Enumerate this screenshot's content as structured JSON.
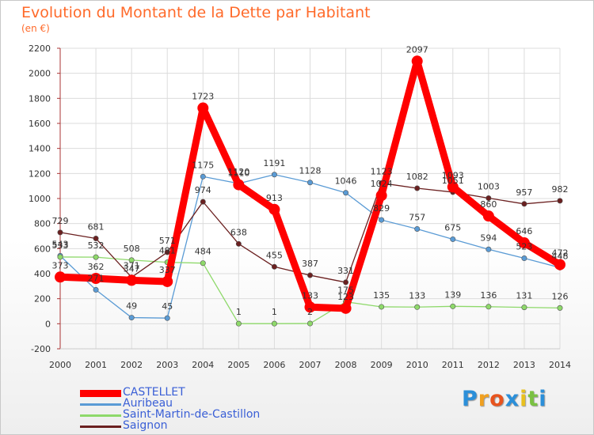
{
  "chart_data": {
    "type": "line",
    "title": "Evolution du Montant de la Dette par Habitant",
    "subtitle": "(en €)",
    "x": [
      "2000",
      "2001",
      "2002",
      "2003",
      "2004",
      "2005",
      "2006",
      "2007",
      "2008",
      "2009",
      "2010",
      "2011",
      "2012",
      "2013",
      "2014"
    ],
    "ylim": [
      -200,
      2200
    ],
    "yticks": [
      -200,
      0,
      200,
      400,
      600,
      800,
      1000,
      1200,
      1400,
      1600,
      1800,
      2000,
      2200
    ],
    "grid": true,
    "legend": "bottom-left",
    "series": [
      {
        "name": "CASTELLET",
        "color": "#ff0000",
        "values": [
          373,
          362,
          347,
          337,
          1723,
          1110,
          913,
          133,
          123,
          1024,
          2097,
          1093,
          860,
          646,
          472
        ]
      },
      {
        "name": "Auribeau",
        "color": "#5a9bd5",
        "values": [
          543,
          271,
          49,
          45,
          1175,
          1120,
          1191,
          1128,
          1046,
          829,
          757,
          675,
          594,
          523,
          448
        ]
      },
      {
        "name": "Saint-Martin-de-Castillon",
        "color": "#8ed96a",
        "values": [
          533,
          532,
          508,
          491,
          484,
          1,
          1,
          2,
          175,
          135,
          133,
          139,
          136,
          131,
          126
        ]
      },
      {
        "name": "Saignon",
        "color": "#6b2020",
        "values": [
          729,
          681,
          371,
          571,
          974,
          638,
          455,
          387,
          331,
          1123,
          1082,
          1051,
          1003,
          957,
          982
        ]
      }
    ]
  },
  "logo": {
    "letters": [
      {
        "ch": "P",
        "color": "#2b8fd9"
      },
      {
        "ch": "r",
        "color": "#f0a020"
      },
      {
        "ch": "o",
        "color": "#e8541e"
      },
      {
        "ch": "x",
        "color": "#2b8fd9"
      },
      {
        "ch": "i",
        "color": "#e8c020"
      },
      {
        "ch": "t",
        "color": "#7ac142"
      },
      {
        "ch": "i",
        "color": "#2b8fd9"
      }
    ]
  }
}
